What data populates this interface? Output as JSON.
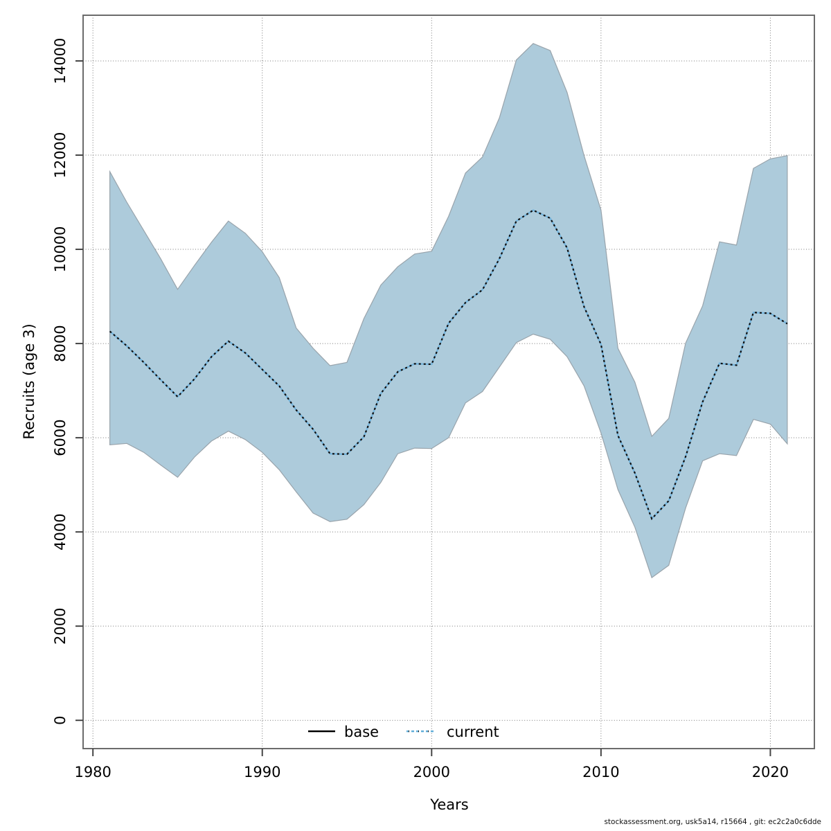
{
  "figure": {
    "ylabel": "Recruits (age 3)",
    "xlabel": "Years",
    "watermark": "stockassessment.org, usk5a14, r15664 , git: ec2c2a0c6dde"
  },
  "legend": {
    "items": [
      {
        "label": "base",
        "color": "#000000",
        "style": "solid"
      },
      {
        "label": "current",
        "color": "#62aed8",
        "style": "dotted"
      }
    ]
  },
  "chart_data": {
    "type": "line",
    "title": "",
    "xlabel": "Years",
    "ylabel": "Recruits (age 3)",
    "grid": true,
    "legend_position": "bottom-center",
    "x_ticks": [
      1980,
      1990,
      2000,
      2010,
      2020
    ],
    "y_ticks": [
      0,
      2000,
      4000,
      6000,
      8000,
      10000,
      12000,
      14000
    ],
    "xlim": [
      1979.42,
      2022.6
    ],
    "ylim": [
      -600,
      14970
    ],
    "years": [
      1981,
      1982,
      1983,
      1984,
      1985,
      1986,
      1987,
      1988,
      1989,
      1990,
      1991,
      1992,
      1993,
      1994,
      1995,
      1996,
      1997,
      1998,
      1999,
      2000,
      2001,
      2002,
      2003,
      2004,
      2005,
      2006,
      2007,
      2008,
      2009,
      2010,
      2011,
      2012,
      2013,
      2014,
      2015,
      2016,
      2017,
      2018,
      2019,
      2020,
      2021
    ],
    "series": [
      {
        "name": "current",
        "style": "dotted",
        "dash_color": "#101010",
        "halo_color": "#74b4dc",
        "values": [
          8260,
          7950,
          7600,
          7230,
          6870,
          7250,
          7720,
          8050,
          7800,
          7450,
          7100,
          6590,
          6180,
          5660,
          5650,
          6020,
          6940,
          7400,
          7570,
          7560,
          8430,
          8870,
          9140,
          9800,
          10600,
          10830,
          10660,
          10030,
          8780,
          7980,
          6050,
          5250,
          4280,
          4660,
          5600,
          6760,
          7580,
          7540,
          8660,
          8640,
          8420
        ]
      }
    ],
    "band": {
      "name": "current confidence interval",
      "fill": "#adcbdb",
      "edge": "#98a3ab",
      "lower": [
        5850,
        5880,
        5690,
        5420,
        5160,
        5590,
        5930,
        6140,
        5960,
        5690,
        5320,
        4850,
        4400,
        4220,
        4270,
        4580,
        5050,
        5660,
        5780,
        5770,
        6000,
        6740,
        6980,
        7500,
        8020,
        8200,
        8090,
        7720,
        7100,
        6100,
        4900,
        4100,
        3030,
        3290,
        4510,
        5510,
        5660,
        5620,
        6390,
        6290,
        5870
      ],
      "upper": [
        11650,
        11000,
        10400,
        9800,
        9150,
        9660,
        10150,
        10600,
        10340,
        9950,
        9400,
        8330,
        7900,
        7530,
        7600,
        8530,
        9240,
        9630,
        9900,
        9960,
        10700,
        11620,
        11960,
        12790,
        14020,
        14370,
        14220,
        13330,
        11990,
        10830,
        7900,
        7180,
        6030,
        6410,
        8010,
        8800,
        10160,
        10090,
        11720,
        11920,
        11990
      ]
    }
  }
}
